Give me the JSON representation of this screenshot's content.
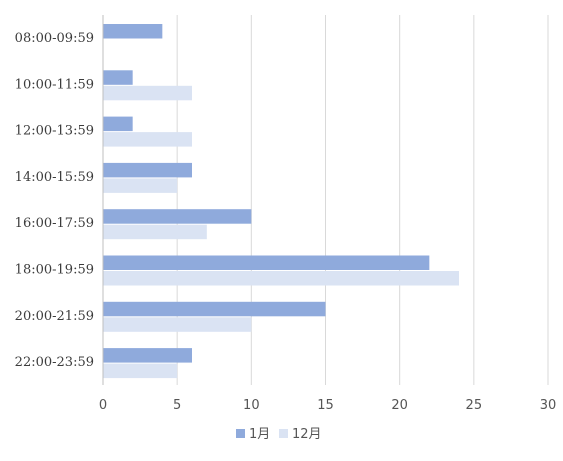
{
  "chart_data": {
    "type": "bar",
    "orientation": "horizontal",
    "categories": [
      "08:00-09:59",
      "10:00-11:59",
      "12:00-13:59",
      "14:00-15:59",
      "16:00-17:59",
      "18:00-19:59",
      "20:00-21:59",
      "22:00-23:59"
    ],
    "series": [
      {
        "name": "1月",
        "color": "#8faadc",
        "values": [
          4,
          2,
          2,
          6,
          10,
          22,
          15,
          6
        ]
      },
      {
        "name": "12月",
        "color": "#dae3f3",
        "values": [
          0,
          6,
          6,
          5,
          7,
          24,
          10,
          5
        ]
      }
    ],
    "xlim": [
      0,
      30
    ],
    "xticks": [
      0,
      5,
      10,
      15,
      20,
      25,
      30
    ],
    "grid": true,
    "legend_position": "bottom-center",
    "title": "",
    "xlabel": "",
    "ylabel": ""
  }
}
